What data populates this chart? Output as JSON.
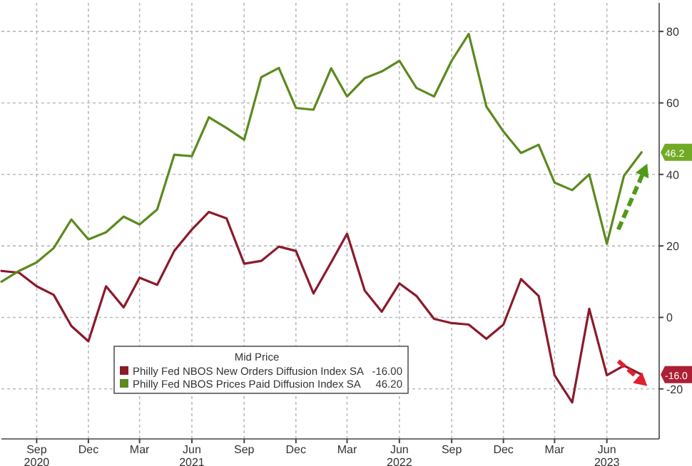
{
  "chart_data": {
    "type": "line",
    "x": [
      "2020-07",
      "2020-08",
      "2020-09",
      "2020-10",
      "2020-11",
      "2020-12",
      "2021-01",
      "2021-02",
      "2021-03",
      "2021-04",
      "2021-05",
      "2021-06",
      "2021-07",
      "2021-08",
      "2021-09",
      "2021-10",
      "2021-11",
      "2021-12",
      "2022-01",
      "2022-02",
      "2022-03",
      "2022-04",
      "2022-05",
      "2022-06",
      "2022-07",
      "2022-08",
      "2022-09",
      "2022-10",
      "2022-11",
      "2022-12",
      "2023-01",
      "2023-02",
      "2023-03",
      "2023-04",
      "2023-05",
      "2023-06",
      "2023-07",
      "2023-08"
    ],
    "series": [
      {
        "name": "Philly Fed NBOS New Orders Diffusion Index SA",
        "color": "#8b1a2b",
        "values": [
          13,
          12.5,
          8.7,
          6.3,
          -2.4,
          -6.7,
          8.7,
          2.8,
          11.1,
          9.1,
          18.6,
          24.6,
          29.5,
          27.7,
          15,
          15.8,
          19.8,
          18.6,
          6.7,
          15.4,
          23.4,
          7.5,
          1.6,
          9.5,
          6,
          -0.4,
          -1.6,
          -2,
          -6,
          -2,
          10.7,
          6,
          -16.2,
          -23.8,
          2.4,
          -16.2,
          -13.5,
          -16
        ]
      },
      {
        "name": "Philly Fed NBOS Prices Paid Diffusion Index SA",
        "color": "#5b8a1e",
        "values": [
          10,
          13,
          15.4,
          19.4,
          27.4,
          21.8,
          23.8,
          28.2,
          26,
          30.2,
          45.5,
          45.1,
          56,
          53,
          49.7,
          67.2,
          69.8,
          58.6,
          58.1,
          69.7,
          61.8,
          66.9,
          68.8,
          71.8,
          64.2,
          61.8,
          71.8,
          79.3,
          59,
          52,
          46,
          48.3,
          37.7,
          35.6,
          40,
          20.6,
          39.6,
          46.2
        ]
      }
    ],
    "annotations": [
      "-16.00",
      "46.20",
      {
        "text": "-16.0",
        "x": "2023-08",
        "y": -16
      },
      {
        "text": "46.2",
        "x": "2023-08",
        "y": 46.2
      }
    ],
    "legend_title": "Mid Price",
    "legend": "bottom left",
    "grid": true,
    "ylim": [
      -34,
      88
    ],
    "yticks": [
      -20,
      0,
      20,
      40,
      60,
      80
    ],
    "xlim": [
      "2020-07",
      "2023-09"
    ],
    "xticks": [
      {
        "value": "2020-09",
        "label": "Sep\n2020"
      },
      {
        "value": "2020-12",
        "label": "Dec"
      },
      {
        "value": "2021-03",
        "label": "Mar"
      },
      {
        "value": "2021-06",
        "label": "Jun\n2021"
      },
      {
        "value": "2021-09",
        "label": "Sep"
      },
      {
        "value": "2021-12",
        "label": "Dec"
      },
      {
        "value": "2022-03",
        "label": "Mar"
      },
      {
        "value": "2022-06",
        "label": "Jun\n2022"
      },
      {
        "value": "2022-09",
        "label": "Sep"
      },
      {
        "value": "2022-12",
        "label": "Dec"
      },
      {
        "value": "2023-03",
        "label": "Mar"
      },
      {
        "value": "2023-06",
        "label": "Jun\n2023"
      }
    ]
  }
}
